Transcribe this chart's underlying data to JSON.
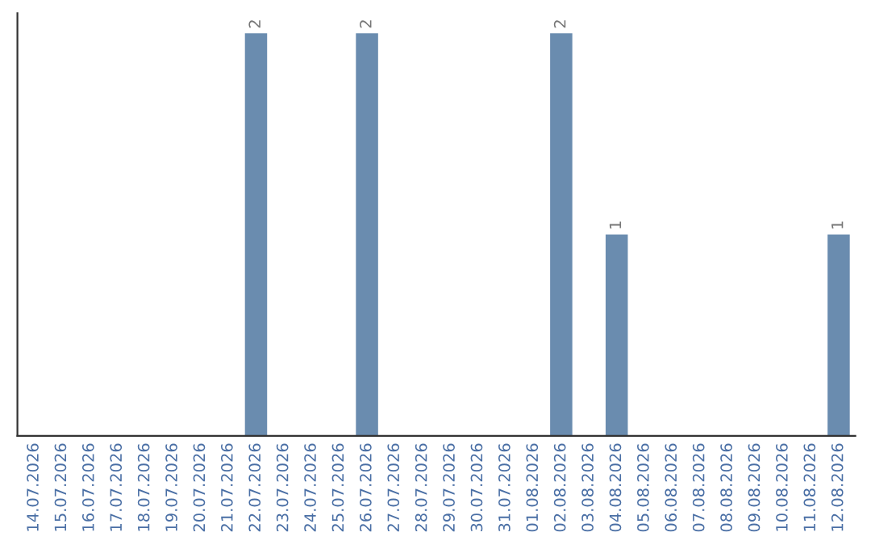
{
  "chart_data": {
    "type": "bar",
    "categories": [
      "14.07.2026",
      "15.07.2026",
      "16.07.2026",
      "17.07.2026",
      "18.07.2026",
      "19.07.2026",
      "20.07.2026",
      "21.07.2026",
      "22.07.2026",
      "23.07.2026",
      "24.07.2026",
      "25.07.2026",
      "26.07.2026",
      "27.07.2026",
      "28.07.2026",
      "29.07.2026",
      "30.07.2026",
      "31.07.2026",
      "01.08.2026",
      "02.08.2026",
      "03.08.2026",
      "04.08.2026",
      "05.08.2026",
      "06.08.2026",
      "07.08.2026",
      "08.08.2026",
      "09.08.2026",
      "10.08.2026",
      "11.08.2026",
      "12.08.2026"
    ],
    "values": [
      0,
      0,
      0,
      0,
      0,
      0,
      0,
      0,
      2,
      0,
      0,
      0,
      2,
      0,
      0,
      0,
      0,
      0,
      0,
      2,
      0,
      1,
      0,
      0,
      0,
      0,
      0,
      0,
      0,
      1
    ],
    "value_labels": [
      null,
      null,
      null,
      null,
      null,
      null,
      null,
      null,
      "2",
      null,
      null,
      null,
      "2",
      null,
      null,
      null,
      null,
      null,
      null,
      "2",
      null,
      "1",
      null,
      null,
      null,
      null,
      null,
      null,
      null,
      "1"
    ],
    "color": "#6a8caf",
    "ylim": [
      0,
      2.1
    ],
    "tick_labels": "x",
    "grid": false,
    "legend": false
  }
}
